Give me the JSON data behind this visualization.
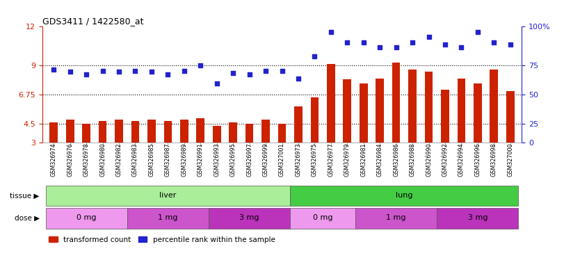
{
  "title": "GDS3411 / 1422580_at",
  "samples": [
    "GSM326974",
    "GSM326976",
    "GSM326978",
    "GSM326980",
    "GSM326982",
    "GSM326983",
    "GSM326985",
    "GSM326987",
    "GSM326989",
    "GSM326991",
    "GSM326993",
    "GSM326995",
    "GSM326997",
    "GSM326999",
    "GSM327001",
    "GSM326973",
    "GSM326975",
    "GSM326977",
    "GSM326979",
    "GSM326981",
    "GSM326984",
    "GSM326986",
    "GSM326988",
    "GSM326990",
    "GSM326992",
    "GSM326994",
    "GSM326996",
    "GSM326998",
    "GSM327000"
  ],
  "bar_values": [
    4.6,
    4.8,
    4.5,
    4.7,
    4.8,
    4.7,
    4.8,
    4.7,
    4.8,
    4.9,
    4.3,
    4.6,
    4.5,
    4.8,
    4.5,
    5.8,
    6.5,
    9.1,
    7.9,
    7.6,
    8.0,
    9.2,
    8.7,
    8.5,
    7.1,
    8.0,
    7.6,
    8.7,
    7.0
  ],
  "dot_values": [
    8.7,
    8.5,
    8.3,
    8.6,
    8.5,
    8.6,
    8.5,
    8.3,
    8.6,
    9.0,
    7.6,
    8.4,
    8.3,
    8.6,
    8.6,
    8.0,
    9.7,
    11.6,
    10.8,
    10.8,
    10.4,
    10.4,
    10.8,
    11.2,
    10.6,
    10.4,
    11.6,
    10.8,
    10.6
  ],
  "ylim_left": [
    3,
    12
  ],
  "yticks_left": [
    3,
    4.5,
    6.75,
    9,
    12
  ],
  "ytick_labels_left": [
    "3",
    "4.5",
    "6.75",
    "9",
    "12"
  ],
  "yticks_right_positions": [
    3,
    4.5,
    6.75,
    9,
    12
  ],
  "ytick_labels_right": [
    "0",
    "25",
    "50",
    "75",
    "100%"
  ],
  "bar_color": "#cc2200",
  "dot_color": "#2222cc",
  "tissue_groups": [
    {
      "label": "liver",
      "start": 0,
      "end": 15,
      "color": "#aaee99"
    },
    {
      "label": "lung",
      "start": 15,
      "end": 29,
      "color": "#44cc44"
    }
  ],
  "dose_groups": [
    {
      "label": "0 mg",
      "start": 0,
      "end": 5,
      "color": "#ee99ee"
    },
    {
      "label": "1 mg",
      "start": 5,
      "end": 10,
      "color": "#cc55cc"
    },
    {
      "label": "3 mg",
      "start": 10,
      "end": 15,
      "color": "#bb33bb"
    },
    {
      "label": "0 mg",
      "start": 15,
      "end": 19,
      "color": "#ee99ee"
    },
    {
      "label": "1 mg",
      "start": 19,
      "end": 24,
      "color": "#cc55cc"
    },
    {
      "label": "3 mg",
      "start": 24,
      "end": 29,
      "color": "#bb33bb"
    }
  ],
  "legend_items": [
    {
      "label": "transformed count",
      "color": "#cc2200",
      "marker": "s"
    },
    {
      "label": "percentile rank within the sample",
      "color": "#2222cc",
      "marker": "s"
    }
  ],
  "tissue_label": "tissue",
  "dose_label": "dose",
  "hgrid_ticks": [
    4.5,
    6.75,
    9
  ],
  "bg_color": "#ffffff"
}
